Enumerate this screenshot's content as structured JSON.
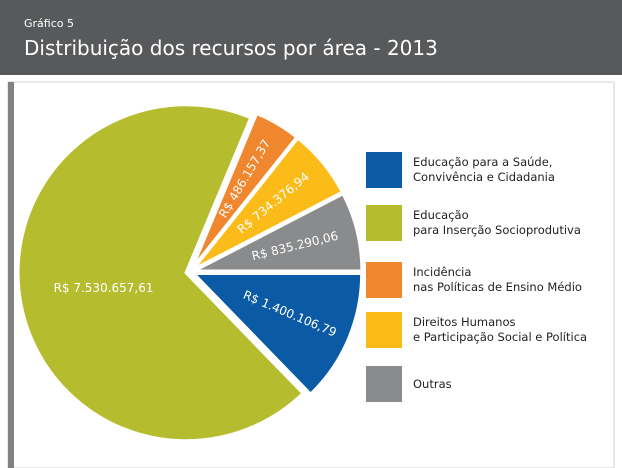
{
  "chart_data": {
    "type": "pie",
    "subtitle": "Gráfico 5",
    "title": "Distribuição dos recursos por área - 2013",
    "categories": [
      "Educação para a Saúde,\nConvivência e Cidadania",
      "Educação\npara Inserção Socioprodutiva",
      "Incidência\nnas Políticas de Ensino Médio",
      "Direitos Humanos\ne Participação Social e Política",
      "Outras"
    ],
    "values": [
      1400106.79,
      7530657.61,
      486157.37,
      734376.94,
      835290.06
    ],
    "value_labels": [
      "R$ 1.400.106,79",
      "R$ 7.530.657,61",
      "R$ 486.157,37",
      "R$ 734.376,94",
      "R$ 835.290,06"
    ],
    "colors": [
      "#0b5aa6",
      "#b5bd2f",
      "#f0862e",
      "#fbbb18",
      "#8a8b8d"
    ]
  }
}
